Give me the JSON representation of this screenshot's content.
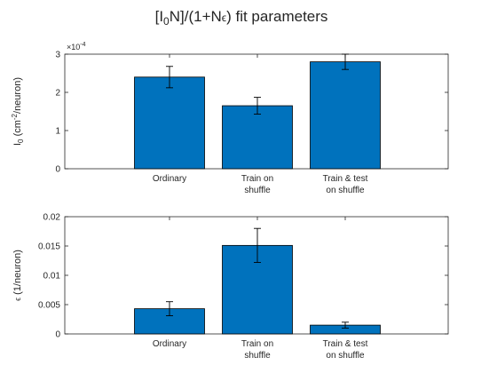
{
  "chart_data": {
    "type": "bar",
    "title_parts": [
      "[I",
      "0",
      "N]/(1+N",
      "ϵ",
      ") fit parameters"
    ],
    "bar_color": "#0072BD",
    "categories": [
      [
        "Ordinary"
      ],
      [
        "Train on",
        "shuffle"
      ],
      [
        "Train & test",
        "on shuffle"
      ]
    ],
    "panels": [
      {
        "ylabel_parts": [
          "I",
          "0",
          " (cm",
          "-2",
          "/neuron)"
        ],
        "exponent_label": "×10",
        "exponent_power": "-4",
        "ylim": [
          0,
          3
        ],
        "yticks": [
          0,
          1,
          2,
          3
        ],
        "ytick_labels": [
          "0",
          "1",
          "2",
          "3"
        ],
        "values": [
          2.4,
          1.65,
          2.8
        ],
        "errors": [
          0.28,
          0.22,
          0.2
        ]
      },
      {
        "ylabel_parts": [
          "ϵ",
          " (1/neuron)"
        ],
        "ylim": [
          0,
          0.02
        ],
        "yticks": [
          0,
          0.005,
          0.01,
          0.015,
          0.02
        ],
        "ytick_labels": [
          "0",
          "0.005",
          "0.01",
          "0.015",
          "0.02"
        ],
        "values": [
          0.0043,
          0.0151,
          0.0015
        ],
        "errors": [
          0.0012,
          0.0029,
          0.0005
        ]
      }
    ]
  }
}
